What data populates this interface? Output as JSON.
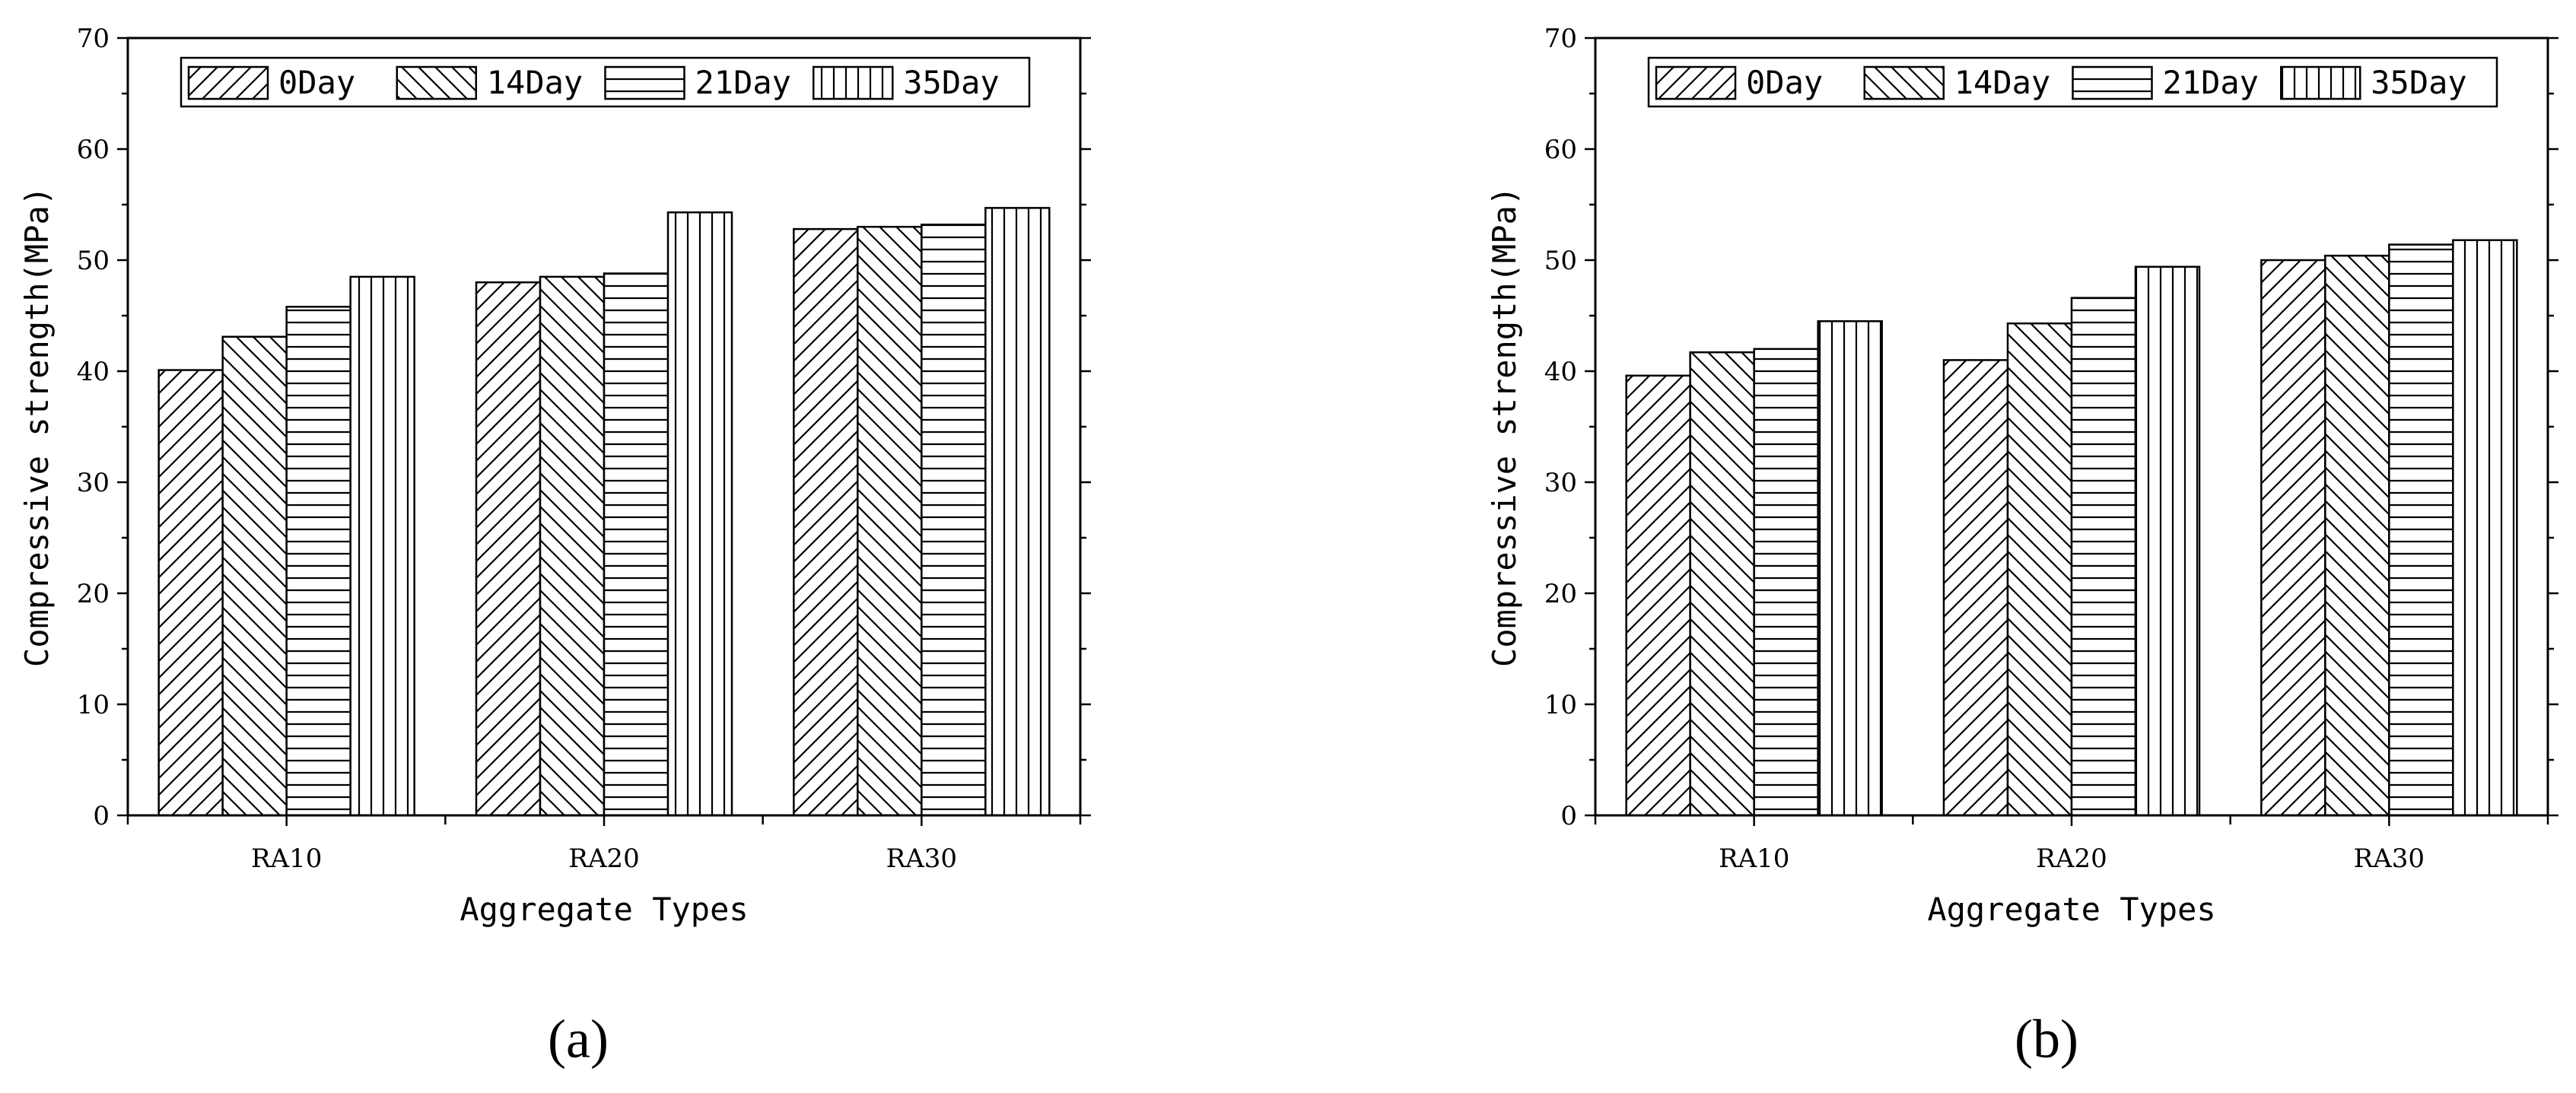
{
  "figure": {
    "panels": [
      {
        "id": "a",
        "label": "(a)"
      },
      {
        "id": "b",
        "label": "(b)"
      }
    ]
  },
  "chart_data": [
    {
      "type": "bar",
      "panel": "(a)",
      "title": "",
      "xlabel": "Aggregate Types",
      "ylabel": "Compressive strength(MPa)",
      "categories": [
        "RA10",
        "RA20",
        "RA30"
      ],
      "ylim": [
        0,
        70
      ],
      "yticks": [
        0,
        10,
        20,
        30,
        40,
        50,
        60,
        70
      ],
      "grid": false,
      "legend_position": "top",
      "series": [
        {
          "name": "0Day",
          "pattern": "diagonal-forward",
          "values": [
            40.1,
            48.0,
            52.8
          ]
        },
        {
          "name": "14Day",
          "pattern": "diagonal-back",
          "values": [
            43.1,
            48.5,
            53.0
          ]
        },
        {
          "name": "21Day",
          "pattern": "horizontal",
          "values": [
            45.8,
            48.8,
            53.2
          ]
        },
        {
          "name": "35Day",
          "pattern": "vertical",
          "values": [
            48.5,
            54.3,
            54.7
          ]
        }
      ]
    },
    {
      "type": "bar",
      "panel": "(b)",
      "title": "",
      "xlabel": "Aggregate Types",
      "ylabel": "Compressive strength(MPa)",
      "categories": [
        "RA10",
        "RA20",
        "RA30"
      ],
      "ylim": [
        0,
        70
      ],
      "yticks": [
        0,
        10,
        20,
        30,
        40,
        50,
        60,
        70
      ],
      "grid": false,
      "legend_position": "top",
      "series": [
        {
          "name": "0Day",
          "pattern": "diagonal-forward",
          "values": [
            39.6,
            41.0,
            50.0
          ]
        },
        {
          "name": "14Day",
          "pattern": "diagonal-back",
          "values": [
            41.7,
            44.3,
            50.4
          ]
        },
        {
          "name": "21Day",
          "pattern": "horizontal",
          "values": [
            42.0,
            46.6,
            51.4
          ]
        },
        {
          "name": "35Day",
          "pattern": "vertical",
          "values": [
            44.5,
            49.4,
            51.8
          ]
        }
      ]
    }
  ]
}
